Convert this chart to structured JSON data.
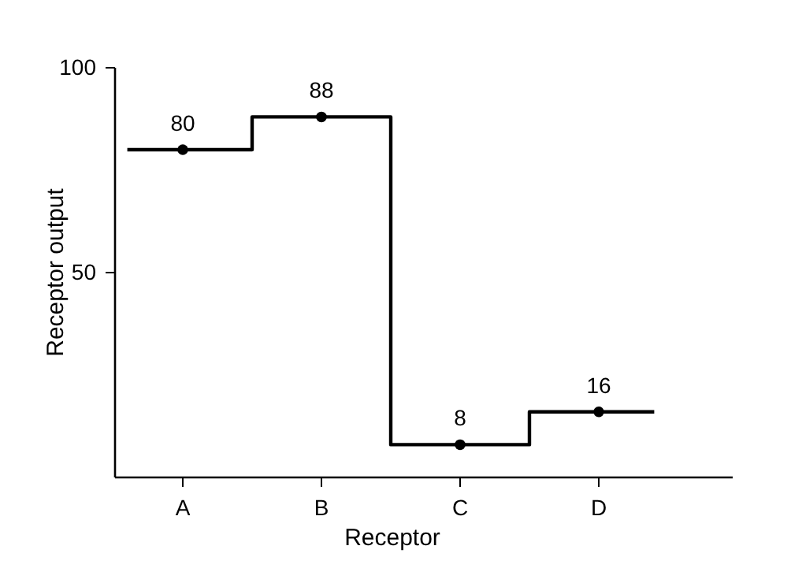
{
  "chart_data": {
    "type": "step",
    "xlabel": "Receptor",
    "ylabel": "Receptor output",
    "categories": [
      "A",
      "B",
      "C",
      "D"
    ],
    "values": [
      80,
      88,
      8,
      16
    ],
    "color": "#000000",
    "ylim": [
      0,
      100
    ],
    "yticks": [
      50,
      100
    ],
    "data_labels": true,
    "marker": "circle",
    "grid": false
  }
}
